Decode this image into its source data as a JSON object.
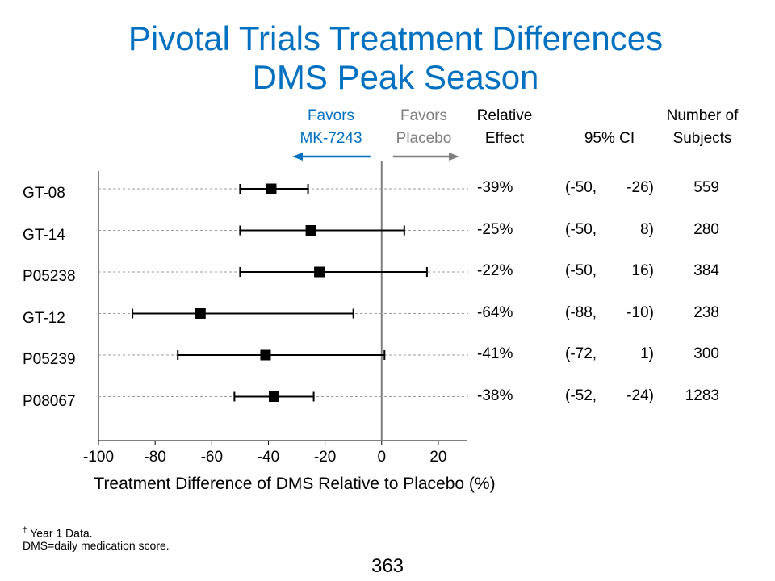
{
  "title": {
    "line1": "Pivotal Trials Treatment Differences",
    "line2": "DMS Peak Season"
  },
  "headers": {
    "favors_drug": [
      "Favors",
      "MK-7243"
    ],
    "favors_placebo": [
      "Favors",
      "Placebo"
    ],
    "relative_effect": [
      "Relative",
      "Effect"
    ],
    "ci": "95% CI",
    "subjects": [
      "Number of",
      "Subjects"
    ]
  },
  "colors": {
    "title": "#0070c0",
    "favors_drug": "#0070c0",
    "favors_placebo": "#7f7f7f"
  },
  "footnotes": {
    "dagger": "†",
    "line1": " Year 1 Data.",
    "line2": "DMS=daily medication score."
  },
  "page_number": "363",
  "chart_data": {
    "type": "forest",
    "xlabel": "Treatment Difference of DMS Relative to Placebo (%)",
    "xlim": [
      -100,
      30
    ],
    "xticks": [
      -100,
      -80,
      -60,
      -40,
      -20,
      0,
      20
    ],
    "xtick_labels": [
      "-100",
      "-80",
      "-60",
      "-40",
      "-20",
      "0",
      "20"
    ],
    "reference_line": 0,
    "studies": [
      {
        "name": "GT-08",
        "effect": -39,
        "lower": -50,
        "upper": -26,
        "effect_label": "-39%",
        "ci_lower": "(-50,",
        "ci_upper": "-26)",
        "n": "559"
      },
      {
        "name": "GT-14",
        "effect": -25,
        "lower": -50,
        "upper": 8,
        "effect_label": "-25%",
        "ci_lower": "(-50,",
        "ci_upper": "8)",
        "n": "280"
      },
      {
        "name": "P05238",
        "effect": -22,
        "lower": -50,
        "upper": 16,
        "effect_label": "-22%",
        "ci_lower": "(-50,",
        "ci_upper": "16)",
        "n": "384"
      },
      {
        "name": "GT-12",
        "effect": -64,
        "lower": -88,
        "upper": -10,
        "effect_label": "-64%",
        "ci_lower": "(-88,",
        "ci_upper": "-10)",
        "n": "238"
      },
      {
        "name": "P05239",
        "effect": -41,
        "lower": -72,
        "upper": 1,
        "effect_label": "-41%",
        "ci_lower": "(-72,",
        "ci_upper": "1)",
        "n": "300"
      },
      {
        "name": "P08067",
        "effect": -38,
        "lower": -52,
        "upper": -24,
        "effect_label": "-38%",
        "ci_lower": "(-52,",
        "ci_upper": "-24)",
        "n": "1283"
      }
    ]
  }
}
